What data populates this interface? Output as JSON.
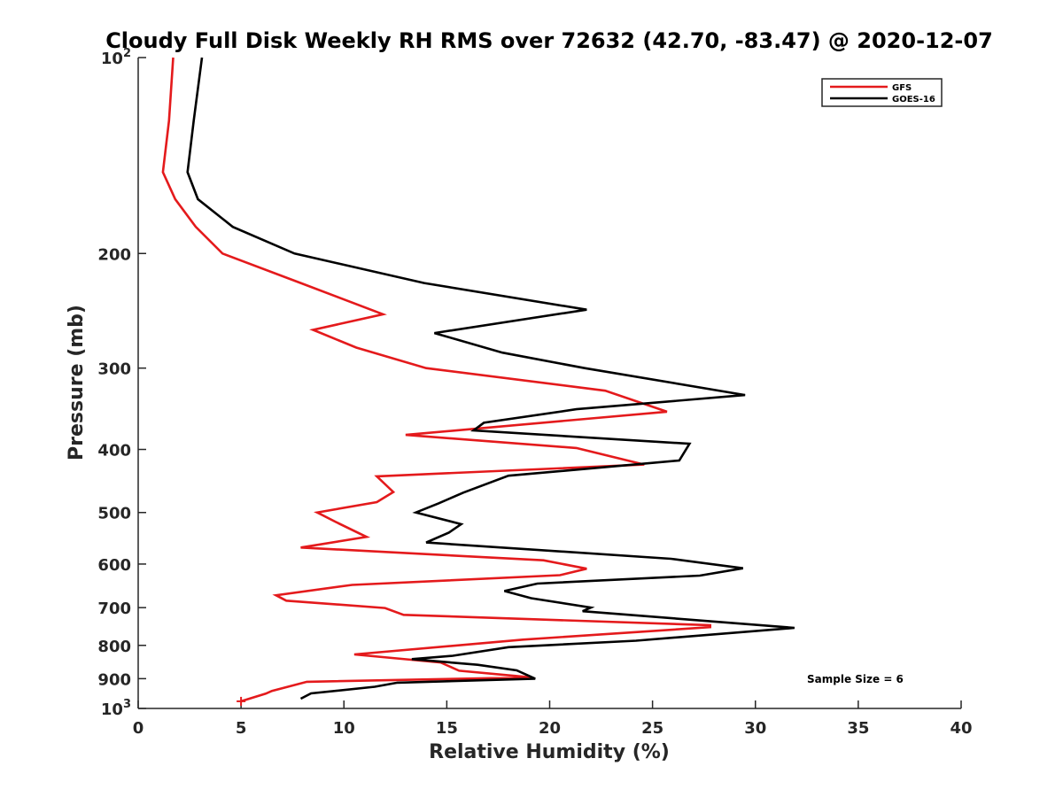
{
  "chart_data": {
    "type": "line",
    "title": "Cloudy Full Disk Weekly RH RMS over 72632 (42.70, -83.47) @ 2020-12-07",
    "xlabel": "Relative Humidity (%)",
    "ylabel": "Pressure (mb)",
    "xlim": [
      0,
      40
    ],
    "ylim": [
      100,
      1000
    ],
    "y_scale": "log",
    "y_reversed": true,
    "x_ticks": [
      0,
      5,
      10,
      15,
      20,
      25,
      30,
      35,
      40
    ],
    "y_tick_labels": [
      {
        "value": 100,
        "base": "10",
        "exp": "2"
      },
      {
        "value": 200,
        "base": "200",
        "exp": ""
      },
      {
        "value": 300,
        "base": "300",
        "exp": ""
      },
      {
        "value": 400,
        "base": "400",
        "exp": ""
      },
      {
        "value": 500,
        "base": "500",
        "exp": ""
      },
      {
        "value": 600,
        "base": "600",
        "exp": ""
      },
      {
        "value": 700,
        "base": "700",
        "exp": ""
      },
      {
        "value": 800,
        "base": "800",
        "exp": ""
      },
      {
        "value": 900,
        "base": "900",
        "exp": ""
      },
      {
        "value": 1000,
        "base": "10",
        "exp": "3"
      }
    ],
    "grid": false,
    "legend_position": "top-right",
    "annotation": "Sample Size = 6",
    "series": [
      {
        "name": "GFS",
        "color": "#e41a1c",
        "points": [
          [
            1.7,
            100
          ],
          [
            1.5,
            125
          ],
          [
            1.2,
            150
          ],
          [
            1.8,
            165
          ],
          [
            2.8,
            182
          ],
          [
            4.1,
            200
          ],
          [
            7.9,
            222
          ],
          [
            11.9,
            248
          ],
          [
            8.5,
            262
          ],
          [
            10.6,
            279
          ],
          [
            14.0,
            300
          ],
          [
            22.7,
            325
          ],
          [
            25.7,
            350
          ],
          [
            13.0,
            380
          ],
          [
            21.3,
            398
          ],
          [
            24.6,
            422
          ],
          [
            11.6,
            440
          ],
          [
            12.4,
            465
          ],
          [
            11.6,
            482
          ],
          [
            8.7,
            500
          ],
          [
            9.6,
            517
          ],
          [
            11.1,
            545
          ],
          [
            7.9,
            566
          ],
          [
            19.7,
            592
          ],
          [
            21.8,
            610
          ],
          [
            20.5,
            624
          ],
          [
            10.4,
            646
          ],
          [
            6.7,
            670
          ],
          [
            7.2,
            683
          ],
          [
            12.0,
            701
          ],
          [
            12.9,
            718
          ],
          [
            27.8,
            745
          ],
          [
            27.8,
            750
          ],
          [
            18.7,
            784
          ],
          [
            10.5,
            826
          ],
          [
            14.7,
            850
          ],
          [
            15.6,
            875
          ],
          [
            19.1,
            896
          ],
          [
            8.2,
            910
          ],
          [
            6.5,
            940
          ],
          [
            6.2,
            949
          ],
          [
            5.0,
            975
          ]
        ]
      },
      {
        "name": "GOES-16",
        "color": "#000000",
        "points": [
          [
            3.1,
            100
          ],
          [
            2.7,
            125
          ],
          [
            2.4,
            150
          ],
          [
            2.9,
            165
          ],
          [
            4.6,
            182
          ],
          [
            7.6,
            200
          ],
          [
            13.9,
            222
          ],
          [
            21.8,
            244
          ],
          [
            14.4,
            265
          ],
          [
            17.7,
            284
          ],
          [
            21.7,
            300
          ],
          [
            29.5,
            330
          ],
          [
            21.3,
            347
          ],
          [
            16.8,
            364
          ],
          [
            16.3,
            374
          ],
          [
            26.8,
            392
          ],
          [
            26.3,
            416
          ],
          [
            18.0,
            439
          ],
          [
            15.8,
            466
          ],
          [
            14.6,
            484
          ],
          [
            13.5,
            500
          ],
          [
            15.7,
            521
          ],
          [
            15.1,
            537
          ],
          [
            14.0,
            556
          ],
          [
            25.9,
            589
          ],
          [
            29.4,
            609
          ],
          [
            27.3,
            625
          ],
          [
            19.4,
            643
          ],
          [
            17.8,
            660
          ],
          [
            19.1,
            677
          ],
          [
            22.0,
            700
          ],
          [
            21.6,
            709
          ],
          [
            31.9,
            752
          ],
          [
            24.2,
            787
          ],
          [
            18.0,
            805
          ],
          [
            15.3,
            830
          ],
          [
            13.3,
            840
          ],
          [
            16.5,
            857
          ],
          [
            18.4,
            874
          ],
          [
            19.3,
            900
          ],
          [
            12.6,
            913
          ],
          [
            11.5,
            926
          ],
          [
            8.4,
            948
          ],
          [
            7.9,
            966
          ]
        ]
      }
    ]
  }
}
